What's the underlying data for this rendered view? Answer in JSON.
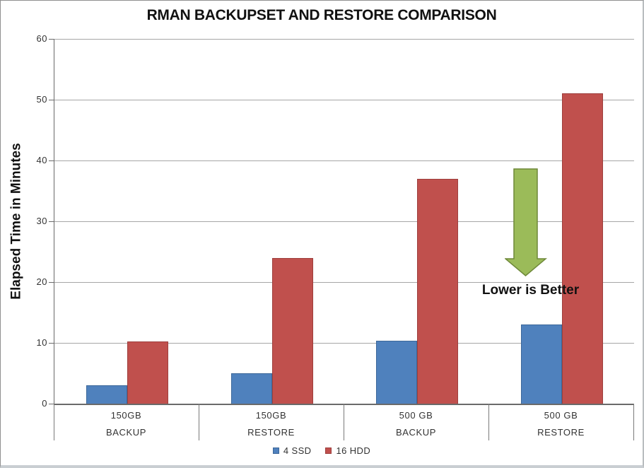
{
  "chart_data": {
    "type": "bar",
    "title": "RMAN BACKUPSET AND RESTORE COMPARISON",
    "xlabel": "",
    "ylabel": "Elapsed Time in Minutes",
    "ylim": [
      0,
      60
    ],
    "yticks": [
      0,
      10,
      20,
      30,
      40,
      50,
      60
    ],
    "grid": true,
    "legend_position": "bottom",
    "categories": [
      {
        "line1": "150GB",
        "line2": "BACKUP"
      },
      {
        "line1": "150GB",
        "line2": "RESTORE"
      },
      {
        "line1": "500 GB",
        "line2": "BACKUP"
      },
      {
        "line1": "500 GB",
        "line2": "RESTORE"
      }
    ],
    "series": [
      {
        "name": "4 SSD",
        "color": "#4f81bd",
        "border_color": "#3d689a",
        "values": [
          3,
          5,
          10.4,
          13
        ]
      },
      {
        "name": "16 HDD",
        "color": "#c0504d",
        "border_color": "#9e3f3d",
        "values": [
          10.2,
          24,
          37,
          51
        ]
      }
    ],
    "annotation": {
      "text": "Lower is Better",
      "text_color": "#111111",
      "arrow_fill": "#9bbb59",
      "arrow_stroke": "#6e8839",
      "arrow_points_from_value": 39,
      "arrow_points_to_value": 21
    },
    "style": {
      "gridline_color": "#a6a6a6",
      "axis_color": "#6a6a6a",
      "tick_label_color": "#333333",
      "background": "#ffffff"
    }
  }
}
